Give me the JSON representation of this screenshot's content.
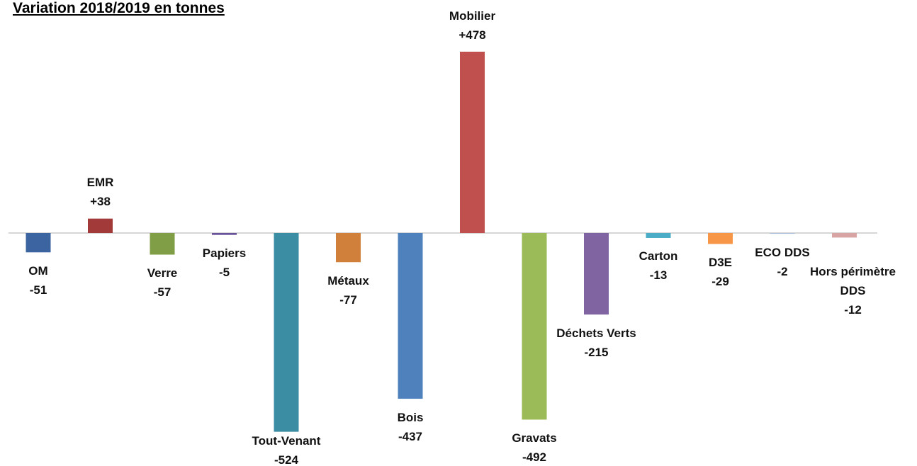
{
  "chart_data": {
    "type": "bar",
    "title": "Variation 2018/2019 en tonnes",
    "categories": [
      "OM",
      "EMR",
      "Verre",
      "Papiers",
      "Tout-Venant",
      "Métaux",
      "Bois",
      "Mobilier",
      "Gravats",
      "Déchets Verts",
      "Carton",
      "D3E",
      "ECO DDS",
      "Hors périmètre DDS"
    ],
    "values": [
      -51,
      38,
      -57,
      -5,
      -524,
      -77,
      -437,
      478,
      -492,
      -215,
      -13,
      -29,
      -2,
      -12
    ],
    "value_labels": [
      "-51",
      "+38",
      "-57",
      "-5",
      "-524",
      "-77",
      "-437",
      "+478",
      "-492",
      "-215",
      "-13",
      "-29",
      "-2",
      "-12"
    ],
    "colors": [
      "#3c64a0",
      "#a33a3a",
      "#7f9e45",
      "#69519a",
      "#3a8da3",
      "#d0803a",
      "#4f81bd",
      "#c0504d",
      "#9bbb59",
      "#8064a2",
      "#4bacc6",
      "#f79646",
      "#aab9d9",
      "#d9a5a4"
    ]
  }
}
